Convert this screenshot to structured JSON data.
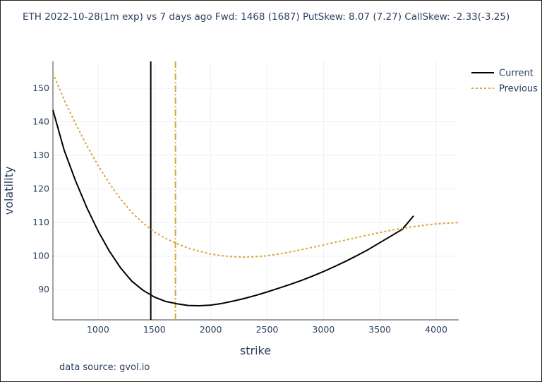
{
  "chart_data": {
    "type": "line",
    "title": "ETH 2022-10-28(1m exp) vs 7 days ago Fwd: 1468 (1687) PutSkew: 8.07 (7.27) CallSkew: -2.33(-3.25)",
    "xlabel": "strike",
    "ylabel": "volatility",
    "xlim": [
      600,
      4200
    ],
    "ylim": [
      81,
      158
    ],
    "x_ticks": [
      1000,
      1500,
      2000,
      2500,
      3000,
      3500,
      4000
    ],
    "y_ticks": [
      90,
      100,
      110,
      120,
      130,
      140,
      150
    ],
    "legend_position": "top-right-outside",
    "series": [
      {
        "name": "Current",
        "color": "#000000",
        "dash": "solid",
        "x": [
          600,
          700,
          800,
          900,
          1000,
          1100,
          1200,
          1300,
          1400,
          1500,
          1600,
          1700,
          1800,
          1900,
          2000,
          2100,
          2200,
          2300,
          2400,
          2500,
          2600,
          2700,
          2800,
          2900,
          3000,
          3100,
          3200,
          3300,
          3400,
          3500,
          3600,
          3700,
          3800
        ],
        "values": [
          143.5,
          131.5,
          122.5,
          114.5,
          107.5,
          101.5,
          96.5,
          92.5,
          89.8,
          87.8,
          86.5,
          85.8,
          85.3,
          85.2,
          85.4,
          85.9,
          86.6,
          87.4,
          88.3,
          89.3,
          90.4,
          91.5,
          92.7,
          94.0,
          95.4,
          96.9,
          98.5,
          100.2,
          102.0,
          104.0,
          106.0,
          108.0,
          112.0
        ]
      },
      {
        "name": "Previous",
        "color": "#dba53d",
        "dash": "dot",
        "x": [
          600,
          700,
          800,
          900,
          1000,
          1100,
          1200,
          1300,
          1400,
          1500,
          1600,
          1700,
          1800,
          1900,
          2000,
          2100,
          2200,
          2300,
          2400,
          2500,
          2600,
          2700,
          2800,
          2900,
          3000,
          3100,
          3200,
          3300,
          3400,
          3500,
          3600,
          3700,
          3800,
          3900,
          4000,
          4100,
          4200
        ],
        "values": [
          154.5,
          146.5,
          139.5,
          133.0,
          127.0,
          121.7,
          117.0,
          113.0,
          109.8,
          107.2,
          105.3,
          103.7,
          102.4,
          101.4,
          100.6,
          100.1,
          99.8,
          99.7,
          99.8,
          100.1,
          100.6,
          101.2,
          101.9,
          102.6,
          103.3,
          104.1,
          104.8,
          105.6,
          106.3,
          107.0,
          107.7,
          108.3,
          108.8,
          109.2,
          109.6,
          109.8,
          110.0
        ]
      }
    ],
    "vertical_lines": [
      {
        "series": "Current",
        "x": 1468,
        "color": "#000000",
        "dash": "solid"
      },
      {
        "series": "Previous",
        "x": 1687,
        "color": "#dba53d",
        "dash": "dashdot"
      }
    ]
  },
  "footer": {
    "source": "data source: gvol.io"
  }
}
